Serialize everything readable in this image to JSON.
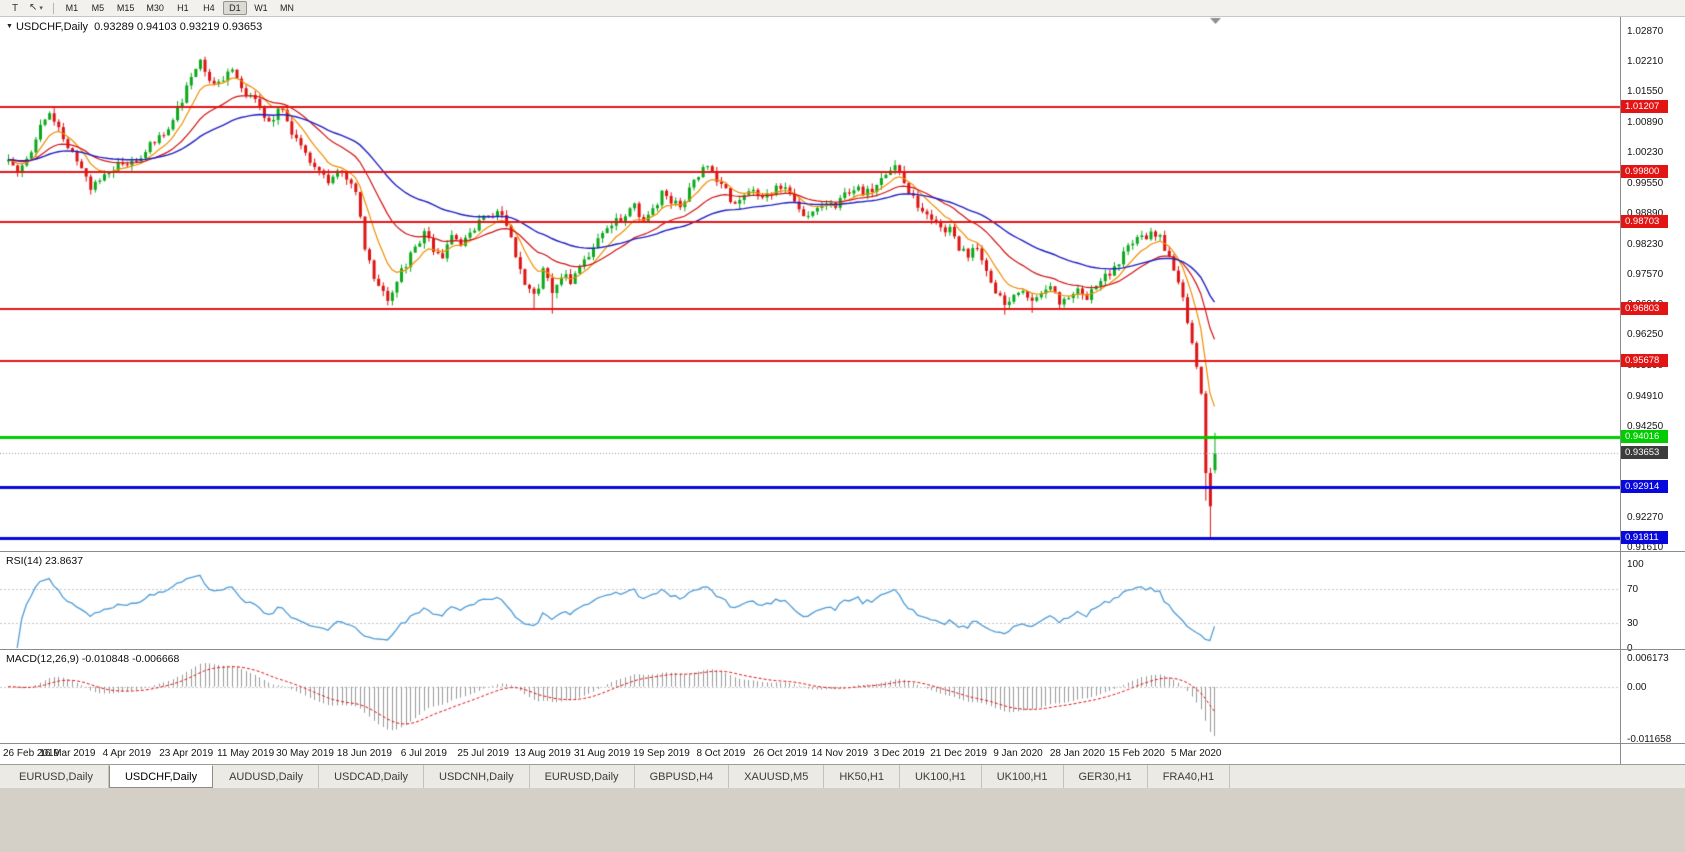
{
  "toolbar": {
    "text_tool_label": "T",
    "timeframes": [
      "M1",
      "M5",
      "M15",
      "M30",
      "H1",
      "H4",
      "D1",
      "W1",
      "MN"
    ],
    "active_timeframe": "D1"
  },
  "colors": {
    "bull": "#0ca81c",
    "bear": "#dc1414",
    "current_badge_bg": "#3c3c3c"
  },
  "chart_data": {
    "type": "candlestick",
    "symbol": "USDCHF",
    "timeframe": "Daily",
    "symbol_label": "USDCHF,Daily",
    "ohlc_text": "0.93289 0.94103 0.93219 0.93653",
    "quote": {
      "open": 0.93289,
      "high": 0.94103,
      "low": 0.93219,
      "close": 0.93653
    },
    "current_price": 0.93653,
    "current_price_label": "0.93653",
    "price_range": {
      "max": 1.03175,
      "min": 0.91523
    },
    "price_axis_ticks": [
      "1.02870",
      "1.02210",
      "1.01550",
      "1.00890",
      "1.00230",
      "0.99550",
      "0.98890",
      "0.98230",
      "0.97570",
      "0.96910",
      "0.96250",
      "0.95590",
      "0.94910",
      "0.94250",
      "0.93590",
      "0.92930",
      "0.92270",
      "0.91610"
    ],
    "x_labels": [
      "26 Feb 2019",
      "16 Mar 2019",
      "4 Apr 2019",
      "23 Apr 2019",
      "11 May 2019",
      "30 May 2019",
      "18 Jun 2019",
      "6 Jul 2019",
      "25 Jul 2019",
      "13 Aug 2019",
      "31 Aug 2019",
      "19 Sep 2019",
      "8 Oct 2019",
      "26 Oct 2019",
      "14 Nov 2019",
      "3 Dec 2019",
      "21 Dec 2019",
      "9 Jan 2020",
      "28 Jan 2020",
      "15 Feb 2020",
      "5 Mar 2020"
    ],
    "hlines": [
      {
        "price": 1.01207,
        "label": "1.01207",
        "color": "#e31414",
        "width": 2
      },
      {
        "price": 0.998,
        "label": "0.99800",
        "color": "#e31414",
        "width": 2
      },
      {
        "price": 0.98703,
        "label": "0.98703",
        "color": "#e31414",
        "width": 2
      },
      {
        "price": 0.96803,
        "label": "0.96803",
        "color": "#e31414",
        "width": 2
      },
      {
        "price": 0.95678,
        "label": "0.95678",
        "color": "#e31414",
        "width": 2
      },
      {
        "price": 0.94016,
        "label": "0.94016",
        "color": "#00cc00",
        "width": 3
      },
      {
        "price": 0.92914,
        "label": "0.92914",
        "color": "#0808dc",
        "width": 3
      },
      {
        "price": 0.91811,
        "label": "0.91811",
        "color": "#0808dc",
        "width": 3
      }
    ],
    "candles": {
      "count": 265,
      "seed": 13,
      "noise": 0.001,
      "wick": 0.0012,
      "waypoints": [
        [
          0,
          1.0005
        ],
        [
          2,
          0.9988
        ],
        [
          5,
          1.0032
        ],
        [
          7,
          1.0085
        ],
        [
          9,
          1.01
        ],
        [
          11,
          1.0072
        ],
        [
          13,
          1.0038
        ],
        [
          15,
          1.0005
        ],
        [
          18,
          0.9948
        ],
        [
          20,
          0.9962
        ],
        [
          23,
          0.999
        ],
        [
          26,
          1.0002
        ],
        [
          29,
          1.0018
        ],
        [
          32,
          1.0045
        ],
        [
          35,
          1.0075
        ],
        [
          38,
          1.014
        ],
        [
          40,
          1.0195
        ],
        [
          42,
          1.0226
        ],
        [
          44,
          1.0185
        ],
        [
          46,
          1.0168
        ],
        [
          48,
          1.0205
        ],
        [
          50,
          1.019
        ],
        [
          52,
          1.015
        ],
        [
          55,
          1.0118
        ],
        [
          57,
          1.0092
        ],
        [
          60,
          1.0122
        ],
        [
          62,
          1.0068
        ],
        [
          65,
          1.0012
        ],
        [
          67,
          0.9992
        ],
        [
          70,
          0.9952
        ],
        [
          72,
          0.9978
        ],
        [
          74,
          0.9962
        ],
        [
          76,
          0.9935
        ],
        [
          78,
          0.9815
        ],
        [
          80,
          0.9752
        ],
        [
          83,
          0.97
        ],
        [
          85,
          0.9748
        ],
        [
          88,
          0.9795
        ],
        [
          91,
          0.9842
        ],
        [
          93,
          0.9812
        ],
        [
          95,
          0.9798
        ],
        [
          97,
          0.9845
        ],
        [
          99,
          0.9825
        ],
        [
          101,
          0.9842
        ],
        [
          103,
          0.9868
        ],
        [
          105,
          0.9882
        ],
        [
          107,
          0.9902
        ],
        [
          109,
          0.9868
        ],
        [
          111,
          0.9792
        ],
        [
          113,
          0.9728
        ],
        [
          115,
          0.9706
        ],
        [
          117,
          0.9762
        ],
        [
          119,
          0.9724
        ],
        [
          121,
          0.9758
        ],
        [
          123,
          0.9742
        ],
        [
          125,
          0.978
        ],
        [
          127,
          0.9802
        ],
        [
          129,
          0.9825
        ],
        [
          131,
          0.9848
        ],
        [
          133,
          0.9872
        ],
        [
          135,
          0.9888
        ],
        [
          137,
          0.9905
        ],
        [
          139,
          0.9872
        ],
        [
          141,
          0.9895
        ],
        [
          143,
          0.9932
        ],
        [
          145,
          0.9912
        ],
        [
          147,
          0.9902
        ],
        [
          149,
          0.9942
        ],
        [
          151,
          0.9972
        ],
        [
          153,
          0.9995
        ],
        [
          155,
          0.9962
        ],
        [
          157,
          0.9935
        ],
        [
          159,
          0.9905
        ],
        [
          161,
          0.9922
        ],
        [
          163,
          0.9948
        ],
        [
          165,
          0.992
        ],
        [
          167,
          0.9938
        ],
        [
          169,
          0.9952
        ],
        [
          171,
          0.9925
        ],
        [
          173,
          0.9902
        ],
        [
          175,
          0.9878
        ],
        [
          177,
          0.9892
        ],
        [
          179,
          0.9915
        ],
        [
          181,
          0.9908
        ],
        [
          183,
          0.9932
        ],
        [
          185,
          0.9948
        ],
        [
          187,
          0.9928
        ],
        [
          189,
          0.9942
        ],
        [
          191,
          0.9962
        ],
        [
          194,
          1.0
        ],
        [
          196,
          0.9958
        ],
        [
          198,
          0.9918
        ],
        [
          200,
          0.9885
        ],
        [
          202,
          0.9878
        ],
        [
          204,
          0.9852
        ],
        [
          206,
          0.9862
        ],
        [
          208,
          0.9812
        ],
        [
          210,
          0.9802
        ],
        [
          212,
          0.9822
        ],
        [
          214,
          0.9762
        ],
        [
          216,
          0.9722
        ],
        [
          218,
          0.9692
        ],
        [
          220,
          0.9712
        ],
        [
          222,
          0.9728
        ],
        [
          224,
          0.9692
        ],
        [
          226,
          0.9705
        ],
        [
          228,
          0.9722
        ],
        [
          230,
          0.9698
        ],
        [
          232,
          0.9712
        ],
        [
          234,
          0.9728
        ],
        [
          236,
          0.9708
        ],
        [
          238,
          0.9722
        ],
        [
          240,
          0.9748
        ],
        [
          242,
          0.9775
        ],
        [
          244,
          0.9798
        ],
        [
          246,
          0.9822
        ],
        [
          248,
          0.9838
        ],
        [
          250,
          0.9845
        ],
        [
          252,
          0.9838
        ],
        [
          254,
          0.9788
        ],
        [
          256,
          0.9738
        ],
        [
          257,
          0.97
        ],
        [
          258,
          0.9655
        ],
        [
          259,
          0.9608
        ],
        [
          260,
          0.9552
        ],
        [
          261,
          0.9488
        ],
        [
          262,
          0.933
        ],
        [
          263,
          0.9255
        ],
        [
          264,
          0.93653
        ]
      ],
      "low_overrides": {
        "83": 0.9688,
        "115": 0.9678,
        "119": 0.967,
        "218": 0.9668,
        "224": 0.9672,
        "262": 0.9262,
        "263": 0.9182
      }
    },
    "moving_averages": [
      {
        "period": 8,
        "color": "#ef8e00",
        "width": 1.2
      },
      {
        "period": 21,
        "color": "#d01414",
        "width": 1.2
      },
      {
        "period": 45,
        "color": "#2020c0",
        "width": 1.4
      }
    ]
  },
  "panels": {
    "rsi_header": "RSI(14) 23.8637",
    "macd_header": "MACD(12,26,9) -0.010848 -0.006668"
  },
  "rsi": {
    "period": 14,
    "last_value": 23.8637,
    "color": "#4f9bd5",
    "axis_ticks": [
      "100",
      "70",
      "30",
      "0"
    ],
    "guide_levels": [
      70,
      30
    ]
  },
  "macd": {
    "fast": 12,
    "slow": 26,
    "signal": 9,
    "value": -0.010848,
    "signal_value": -0.006668,
    "scale_max": 0.006173,
    "scale_min": -0.011658,
    "axis_top_label": "0.006173",
    "axis_zero_label": "0.00",
    "axis_bottom_label": "-0.011658",
    "histogram_color": "#9a9a9a",
    "signal_color": "#e01414"
  },
  "tabs": {
    "items": [
      "EURUSD,Daily",
      "USDCHF,Daily",
      "AUDUSD,Daily",
      "USDCAD,Daily",
      "USDCNH,Daily",
      "EURUSD,Daily",
      "GBPUSD,H4",
      "XAUUSD,M5",
      "HK50,H1",
      "UK100,H1",
      "UK100,H1",
      "GER30,H1",
      "FRA40,H1"
    ],
    "active_index": 1
  }
}
